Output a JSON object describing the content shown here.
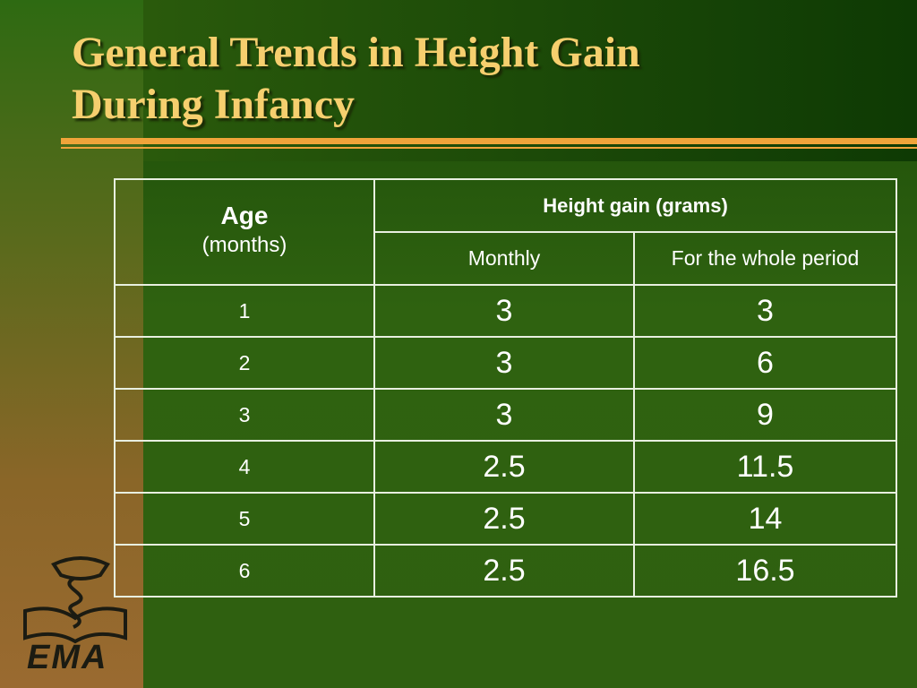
{
  "slide": {
    "title_line1": "General Trends in Height Gain",
    "title_line2": "During Infancy"
  },
  "table": {
    "age_header": "Age",
    "age_unit": "(months)",
    "gain_header": "Height gain (grams)",
    "monthly_header": "Monthly",
    "whole_header": "For the whole period",
    "rows": [
      {
        "age": "1",
        "monthly": "3",
        "whole": "3"
      },
      {
        "age": "2",
        "monthly": "3",
        "whole": "6"
      },
      {
        "age": "3",
        "monthly": "3",
        "whole": "9"
      },
      {
        "age": "4",
        "monthly": "2.5",
        "whole": "11.5"
      },
      {
        "age": "5",
        "monthly": "2.5",
        "whole": "14"
      },
      {
        "age": "6",
        "monthly": "2.5",
        "whole": "16.5"
      }
    ]
  },
  "colors": {
    "title": "#f6cf6e",
    "accent_rule": "#f0a43a",
    "background": "#2d5a0c"
  },
  "logo": {
    "name": "medical-emblem-logo",
    "text": "EMA"
  }
}
